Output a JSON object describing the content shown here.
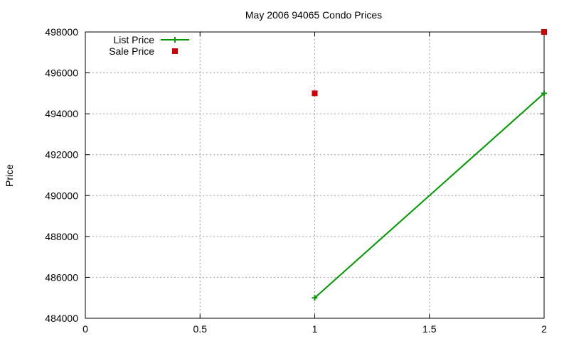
{
  "chart_data": {
    "type": "line",
    "title": "May 2006 94065 Condo Prices",
    "xlabel": "",
    "ylabel": "Price",
    "xlim": [
      0,
      2
    ],
    "ylim": [
      484000,
      498000
    ],
    "x_ticks": [
      0,
      0.5,
      1,
      1.5,
      2
    ],
    "x_tick_labels": [
      "0",
      "0.5",
      "1",
      "1.5",
      "2"
    ],
    "y_ticks": [
      484000,
      486000,
      488000,
      490000,
      492000,
      494000,
      496000,
      498000
    ],
    "y_tick_labels": [
      "484000",
      "486000",
      "488000",
      "490000",
      "492000",
      "494000",
      "496000",
      "498000"
    ],
    "grid": true,
    "legend_position": "top-left",
    "series": [
      {
        "name": "List Price",
        "style": "linespoints",
        "marker": "plus",
        "color": "#009900",
        "points": [
          {
            "x": 1,
            "y": 485000
          },
          {
            "x": 2,
            "y": 495000
          }
        ]
      },
      {
        "name": "Sale Price",
        "style": "points",
        "marker": "square",
        "color": "#cc0000",
        "points": [
          {
            "x": 1,
            "y": 495000
          },
          {
            "x": 2,
            "y": 498000
          }
        ]
      }
    ]
  }
}
